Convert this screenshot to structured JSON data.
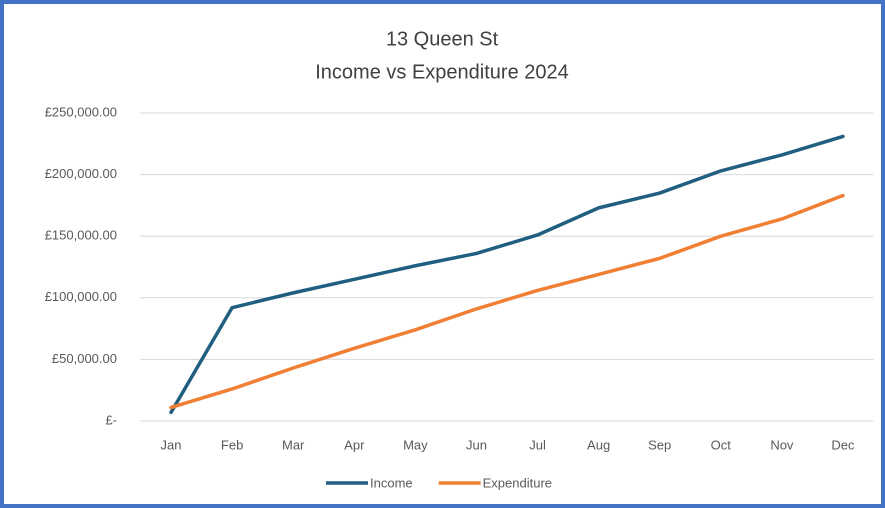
{
  "chart_data": {
    "type": "line",
    "title": "13 Queen St",
    "subtitle": "Income vs Expenditure 2024",
    "categories": [
      "Jan",
      "Feb",
      "Mar",
      "Apr",
      "May",
      "Jun",
      "Jul",
      "Aug",
      "Sep",
      "Oct",
      "Nov",
      "Dec"
    ],
    "series": [
      {
        "name": "Income",
        "color": "#215f80",
        "values": [
          7000,
          92000,
          104000,
          115000,
          126000,
          136000,
          151000,
          173000,
          185000,
          203000,
          216000,
          231000
        ]
      },
      {
        "name": "Expenditure",
        "color": "#f07f33",
        "values": [
          11000,
          26000,
          43000,
          59000,
          74000,
          91000,
          106000,
          119000,
          132000,
          150000,
          164000,
          183000
        ]
      }
    ],
    "ylim": [
      0,
      250000
    ],
    "yticks": [
      {
        "value": 0,
        "label": "£-"
      },
      {
        "value": 50000,
        "label": "£50,000.00"
      },
      {
        "value": 100000,
        "label": "£100,000.00"
      },
      {
        "value": 150000,
        "label": "£150,000.00"
      },
      {
        "value": 200000,
        "label": "£200,000.00"
      },
      {
        "value": 250000,
        "label": "£250,000.00"
      }
    ],
    "grid": true,
    "legend": "bottom"
  }
}
